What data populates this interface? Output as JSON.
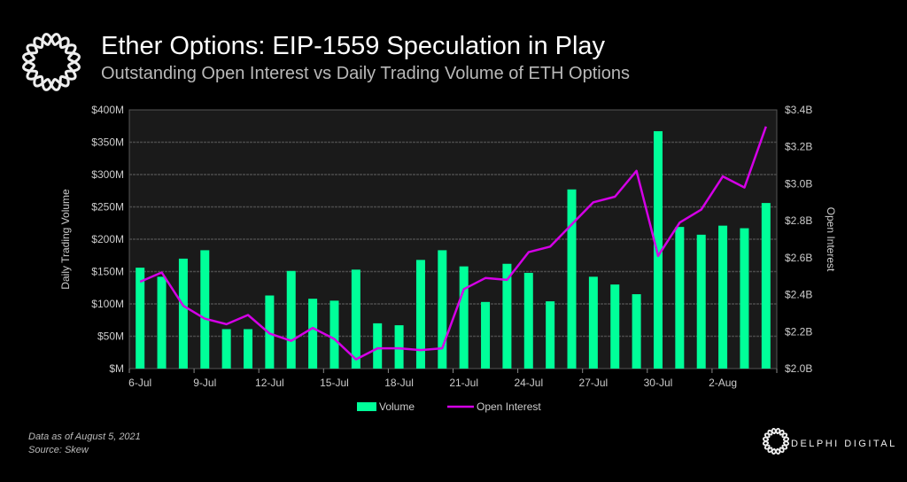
{
  "header": {
    "title": "Ether Options: EIP-1559 Speculation in Play",
    "subtitle": "Outstanding Open Interest vs Daily Trading Volume of ETH Options"
  },
  "footer": {
    "data_note": "Data as of August 5, 2021",
    "source": "Source:  Skew",
    "brand": "DELPHI DIGITAL"
  },
  "colors": {
    "volume": "#00ff99",
    "open_interest": "#d400e6",
    "plot_bg": "#1a1a1a",
    "grid": "#4a4a4a"
  },
  "chart_data": {
    "type": "bar+line",
    "title": "Ether Options: EIP-1559 Speculation in Play",
    "subtitle": "Outstanding Open Interest vs Daily Trading Volume of ETH Options",
    "ylabel": "Daily Trading Volume",
    "y2label": "Open Interest",
    "ylim": [
      0,
      400
    ],
    "y2lim": [
      2.0,
      3.4
    ],
    "yticks": [
      "$M",
      "$50M",
      "$100M",
      "$150M",
      "$200M",
      "$250M",
      "$300M",
      "$350M",
      "$400M"
    ],
    "y2ticks": [
      "$2.0B",
      "$2.2B",
      "$2.4B",
      "$2.6B",
      "$2.8B",
      "$3.0B",
      "$3.2B",
      "$3.4B"
    ],
    "xticks": [
      "6-Jul",
      "9-Jul",
      "12-Jul",
      "15-Jul",
      "18-Jul",
      "21-Jul",
      "24-Jul",
      "27-Jul",
      "30-Jul",
      "2-Aug"
    ],
    "grid": true,
    "legend": "bottom",
    "categories": [
      "6-Jul",
      "7-Jul",
      "8-Jul",
      "9-Jul",
      "10-Jul",
      "11-Jul",
      "12-Jul",
      "13-Jul",
      "14-Jul",
      "15-Jul",
      "16-Jul",
      "17-Jul",
      "18-Jul",
      "19-Jul",
      "20-Jul",
      "21-Jul",
      "22-Jul",
      "23-Jul",
      "24-Jul",
      "25-Jul",
      "26-Jul",
      "27-Jul",
      "28-Jul",
      "29-Jul",
      "30-Jul",
      "31-Jul",
      "1-Aug",
      "2-Aug",
      "3-Aug",
      "4-Aug"
    ],
    "series": [
      {
        "name": "Volume",
        "type": "bar",
        "axis": "left",
        "unit": "$M",
        "values": [
          156,
          142,
          170,
          183,
          61,
          61,
          113,
          151,
          108,
          105,
          153,
          70,
          67,
          168,
          183,
          158,
          103,
          162,
          148,
          104,
          277,
          142,
          130,
          115,
          367,
          219,
          207,
          221,
          217,
          256
        ]
      },
      {
        "name": "Open Interest",
        "type": "line",
        "axis": "right",
        "unit": "$B",
        "values": [
          2.47,
          2.52,
          2.34,
          2.27,
          2.24,
          2.29,
          2.19,
          2.15,
          2.22,
          2.16,
          2.05,
          2.11,
          2.11,
          2.1,
          2.11,
          2.43,
          2.49,
          2.48,
          2.63,
          2.66,
          2.78,
          2.9,
          2.93,
          3.07,
          2.61,
          2.79,
          2.86,
          3.04,
          2.98,
          3.31
        ]
      }
    ]
  }
}
